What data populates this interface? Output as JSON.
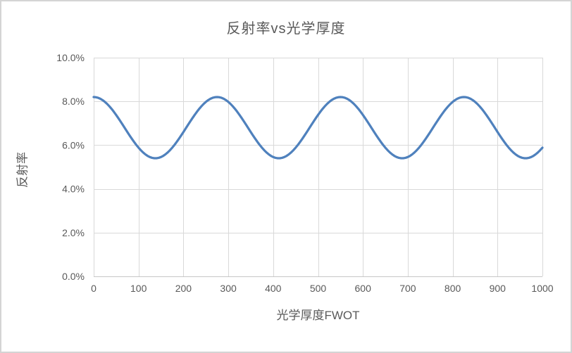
{
  "chart": {
    "title": "反射率vs光学厚度",
    "x_axis_title": "光学厚度FWOT",
    "y_axis_title": "反射率"
  },
  "chart_data": {
    "type": "line",
    "title": "反射率vs光学厚度",
    "xlabel": "光学厚度FWOT",
    "ylabel": "反射率",
    "xlim": [
      0,
      1000
    ],
    "ylim_percent": [
      0,
      10
    ],
    "x_ticks": [
      0,
      100,
      200,
      300,
      400,
      500,
      600,
      700,
      800,
      900,
      1000
    ],
    "y_tick_labels": [
      "0.0%",
      "2.0%",
      "4.0%",
      "6.0%",
      "8.0%",
      "10.0%"
    ],
    "y_tick_values_percent": [
      0,
      2,
      4,
      6,
      8,
      10
    ],
    "grid": true,
    "legend": "none",
    "series": [
      {
        "name": "反射率",
        "color": "#4F81BD",
        "line_width": 3.25,
        "model": {
          "kind": "cosine",
          "mean_percent": 6.8,
          "amplitude_percent": 1.4,
          "period_fwot": 275,
          "phase": "maximum-at-x0",
          "sample_step_fwot": 5
        },
        "key_values_percent": {
          "at_x0": 8.2,
          "maximum": 8.2,
          "minimum": 5.4,
          "at_x1000": 5.9
        },
        "peaks_at_fwot": [
          0,
          275,
          550,
          825
        ],
        "minima_at_fwot": [
          137.5,
          412.5,
          687.5,
          962.5
        ]
      }
    ],
    "colors": {
      "series_blue": "#4F81BD",
      "gridline": "#d9d9d9",
      "axis_line": "#c6c6c6",
      "text": "#595959",
      "frame_border": "#d4d4d4",
      "background": "#ffffff"
    }
  }
}
